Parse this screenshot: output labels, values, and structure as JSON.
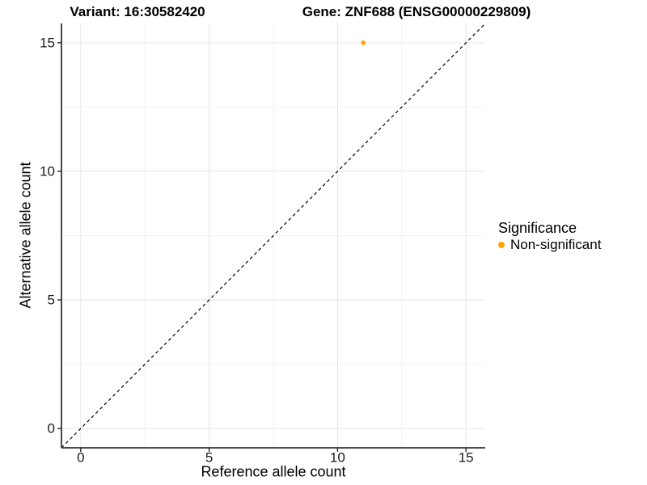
{
  "colors": {
    "background": "#FFFFFF",
    "point_orange": "#FFA500",
    "grid_major": "#E6E6E6",
    "grid_minor": "#F2F2F2",
    "axis_line": "#333333",
    "tick_text": "#1A1A1A",
    "text": "#000000"
  },
  "chart_data": {
    "type": "scatter",
    "title_left": "Variant: 16:30582420",
    "title_right": "Gene: ZNF688 (ENSG00000229809)",
    "xlabel": "Reference allele count",
    "ylabel": "Alternative allele count",
    "xlim": [
      -0.75,
      15.75
    ],
    "ylim": [
      -0.75,
      15.75
    ],
    "x_ticks": [
      0,
      5,
      10,
      15
    ],
    "y_ticks": [
      0,
      5,
      10,
      15
    ],
    "x_minor_ticks": [
      2.5,
      7.5,
      12.5
    ],
    "y_minor_ticks": [
      2.5,
      7.5,
      12.5
    ],
    "grid": "major+minor",
    "reference_line": {
      "kind": "identity y=x",
      "style": "dashed",
      "color": "#000000"
    },
    "series": [
      {
        "name": "Non-significant",
        "color": "#FFA500",
        "points": [
          {
            "x": 11,
            "y": 15
          }
        ]
      }
    ],
    "legend": {
      "position": "right",
      "title": "Significance",
      "items": [
        {
          "label": "Non-significant",
          "color": "#FFA500",
          "marker": "dot"
        }
      ]
    }
  }
}
